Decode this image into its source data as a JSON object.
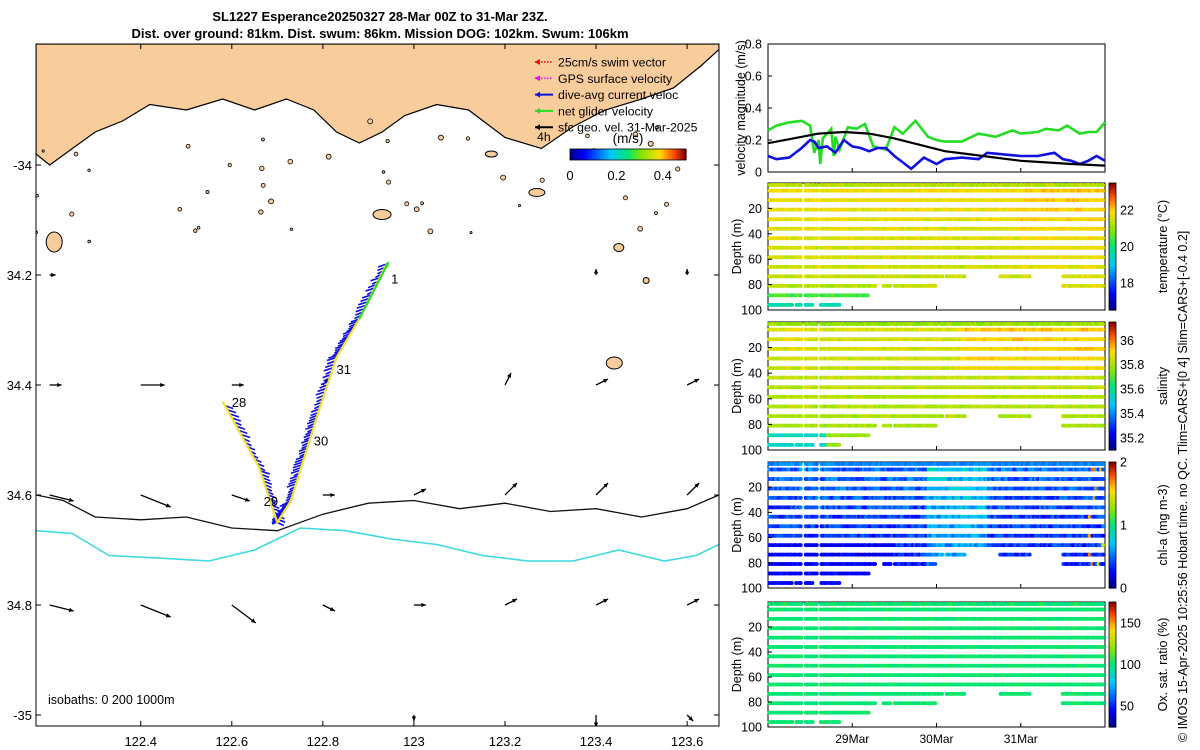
{
  "title": {
    "line1": "SL1227 Esperance20250327 28-Mar 00Z to 31-Mar 23Z.",
    "line2": "Dist. over ground: 81km. Dist. swum: 86km. Mission DOG: 102km. Swum: 106km"
  },
  "side_note": "© IMOS 15-Apr-2025 10:25:56 Hobart time. no QC. Tlim=CARS+[0 4] Slim=CARS+[-0.4 0.2]",
  "colors": {
    "land": "#f9cc9c",
    "isobath_200": "#111111",
    "isobath_1000": "#3ed8e0",
    "track": "#f0e030",
    "current": "#1010e0",
    "net": "#22dd22",
    "geo": "#000000"
  },
  "chart_data": [
    {
      "type": "map",
      "xlim": [
        122.17,
        123.67
      ],
      "ylim": [
        -35.02,
        -33.78
      ],
      "xticks": [
        122.4,
        122.6,
        122.8,
        123,
        123.2,
        123.4,
        123.6
      ],
      "xtick_labels": [
        "122.4",
        "122.6",
        "122.8",
        "123",
        "123.2",
        "123.4",
        "123.6"
      ],
      "yticks": [
        -34,
        -34.2,
        -34.4,
        -34.6,
        -34.8,
        -35
      ],
      "ytick_labels": [
        "-34",
        "34.2",
        "34.4",
        "34.6",
        "34.8",
        "-35"
      ],
      "legend": [
        {
          "label": "25cm/s swim vector",
          "color": "#ff0000",
          "style": "dotted"
        },
        {
          "label": "GPS surface velocity",
          "color": "#ff00ff",
          "style": "dotted"
        },
        {
          "label": "dive-avg current veloc",
          "color": "#1010e0",
          "style": "solid"
        },
        {
          "label": "net glider velocity",
          "color": "#22dd22",
          "style": "solid"
        },
        {
          "label": "sfc geo. vel. 31-Mar-2025",
          "color": "#000000",
          "style": "solid"
        }
      ],
      "legend_note": "4h",
      "colorbar": {
        "label": "(m/s)",
        "ticks": [
          "0",
          "0.2",
          "0.4"
        ],
        "range": [
          0,
          0.5
        ]
      },
      "isobath_caption": "isobaths: 0   200  1000m",
      "track": [
        [
          122.94,
          -34.18
        ],
        [
          122.88,
          -34.28
        ],
        [
          122.83,
          -34.35
        ],
        [
          122.79,
          -34.45
        ],
        [
          122.76,
          -34.53
        ],
        [
          122.73,
          -34.61
        ],
        [
          122.7,
          -34.65
        ],
        [
          122.66,
          -34.55
        ],
        [
          122.58,
          -34.43
        ]
      ],
      "day_labels": [
        {
          "text": "1",
          "lon": 122.95,
          "lat": -34.215
        },
        {
          "text": "31",
          "lon": 122.83,
          "lat": -34.38
        },
        {
          "text": "30",
          "lon": 122.78,
          "lat": -34.51
        },
        {
          "text": "29",
          "lon": 122.67,
          "lat": -34.62
        },
        {
          "text": "28",
          "lon": 122.6,
          "lat": -34.44
        }
      ],
      "isobath_200": [
        [
          122.17,
          -34.6
        ],
        [
          122.23,
          -34.61
        ],
        [
          122.3,
          -34.64
        ],
        [
          122.4,
          -34.645
        ],
        [
          122.5,
          -34.64
        ],
        [
          122.6,
          -34.66
        ],
        [
          122.7,
          -34.665
        ],
        [
          122.8,
          -34.635
        ],
        [
          122.9,
          -34.615
        ],
        [
          123,
          -34.61
        ],
        [
          123.1,
          -34.625
        ],
        [
          123.2,
          -34.615
        ],
        [
          123.3,
          -34.63
        ],
        [
          123.4,
          -34.625
        ],
        [
          123.5,
          -34.64
        ],
        [
          123.6,
          -34.625
        ],
        [
          123.67,
          -34.6
        ]
      ],
      "isobath_1000": [
        [
          122.17,
          -34.665
        ],
        [
          122.25,
          -34.67
        ],
        [
          122.33,
          -34.71
        ],
        [
          122.45,
          -34.715
        ],
        [
          122.55,
          -34.72
        ],
        [
          122.65,
          -34.7
        ],
        [
          122.75,
          -34.66
        ],
        [
          122.85,
          -34.665
        ],
        [
          122.95,
          -34.68
        ],
        [
          123.05,
          -34.69
        ],
        [
          123.15,
          -34.71
        ],
        [
          123.25,
          -34.72
        ],
        [
          123.35,
          -34.72
        ],
        [
          123.45,
          -34.7
        ],
        [
          123.55,
          -34.72
        ],
        [
          123.62,
          -34.71
        ],
        [
          123.67,
          -34.69
        ]
      ],
      "coast": [
        [
          122.17,
          -33.78
        ],
        [
          122.17,
          -33.98
        ],
        [
          122.2,
          -34.0
        ],
        [
          122.25,
          -33.97
        ],
        [
          122.3,
          -33.94
        ],
        [
          122.36,
          -33.92
        ],
        [
          122.42,
          -33.89
        ],
        [
          122.5,
          -33.9
        ],
        [
          122.58,
          -33.88
        ],
        [
          122.65,
          -33.9
        ],
        [
          122.72,
          -33.88
        ],
        [
          122.78,
          -33.9
        ],
        [
          122.83,
          -33.94
        ],
        [
          122.88,
          -33.96
        ],
        [
          122.93,
          -33.94
        ],
        [
          122.98,
          -33.91
        ],
        [
          123.05,
          -33.89
        ],
        [
          123.12,
          -33.9
        ],
        [
          123.2,
          -33.95
        ],
        [
          123.28,
          -33.97
        ],
        [
          123.35,
          -33.93
        ],
        [
          123.42,
          -33.9
        ],
        [
          123.5,
          -33.88
        ],
        [
          123.57,
          -33.86
        ],
        [
          123.63,
          -33.82
        ],
        [
          123.67,
          -33.79
        ],
        [
          123.67,
          -33.78
        ]
      ],
      "geo_vectors": [
        {
          "lon": 122.2,
          "lat": -34.6,
          "u": 0.04,
          "v": -0.01
        },
        {
          "lon": 122.4,
          "lat": -34.6,
          "u": 0.05,
          "v": -0.02
        },
        {
          "lon": 122.6,
          "lat": -34.6,
          "u": 0.03,
          "v": -0.01
        },
        {
          "lon": 122.8,
          "lat": -34.6,
          "u": 0.02,
          "v": 0.0
        },
        {
          "lon": 123.0,
          "lat": -34.6,
          "u": 0.02,
          "v": 0.01
        },
        {
          "lon": 123.2,
          "lat": -34.6,
          "u": 0.02,
          "v": 0.02
        },
        {
          "lon": 123.4,
          "lat": -34.6,
          "u": 0.02,
          "v": 0.02
        },
        {
          "lon": 123.6,
          "lat": -34.6,
          "u": 0.02,
          "v": 0.02
        },
        {
          "lon": 122.2,
          "lat": -34.8,
          "u": 0.04,
          "v": -0.01
        },
        {
          "lon": 122.4,
          "lat": -34.8,
          "u": 0.05,
          "v": -0.02
        },
        {
          "lon": 122.6,
          "lat": -34.8,
          "u": 0.04,
          "v": -0.03
        },
        {
          "lon": 122.8,
          "lat": -34.8,
          "u": 0.02,
          "v": -0.01
        },
        {
          "lon": 123.0,
          "lat": -34.8,
          "u": 0.02,
          "v": 0.0
        },
        {
          "lon": 123.2,
          "lat": -34.8,
          "u": 0.02,
          "v": 0.01
        },
        {
          "lon": 123.4,
          "lat": -34.8,
          "u": 0.02,
          "v": 0.01
        },
        {
          "lon": 123.6,
          "lat": -34.8,
          "u": 0.02,
          "v": 0.01
        },
        {
          "lon": 122.2,
          "lat": -34.4,
          "u": 0.02,
          "v": 0.0
        },
        {
          "lon": 122.4,
          "lat": -34.4,
          "u": 0.04,
          "v": 0.0
        },
        {
          "lon": 122.6,
          "lat": -34.4,
          "u": 0.02,
          "v": 0.0
        },
        {
          "lon": 122.8,
          "lat": -34.4,
          "u": 0.01,
          "v": 0.01
        },
        {
          "lon": 123.2,
          "lat": -34.4,
          "u": 0.01,
          "v": 0.02
        },
        {
          "lon": 123.4,
          "lat": -34.4,
          "u": 0.02,
          "v": 0.01
        },
        {
          "lon": 123.6,
          "lat": -34.4,
          "u": 0.02,
          "v": 0.01
        },
        {
          "lon": 122.2,
          "lat": -34.2,
          "u": 0.01,
          "v": 0.0
        },
        {
          "lon": 123.4,
          "lat": -34.2,
          "u": 0.0,
          "v": 0.01
        },
        {
          "lon": 123.6,
          "lat": -34.2,
          "u": 0.0,
          "v": 0.01
        },
        {
          "lon": 123.0,
          "lat": -35.0,
          "u": 0.0,
          "v": -0.01
        },
        {
          "lon": 123.4,
          "lat": -35.0,
          "u": 0.0,
          "v": -0.02
        },
        {
          "lon": 123.6,
          "lat": -35.0,
          "u": 0.01,
          "v": -0.01
        }
      ]
    },
    {
      "type": "line",
      "ylabel": "velocity magnitude (m/s)",
      "ylim": [
        0,
        0.8
      ],
      "yticks": [
        "0",
        "0.2",
        "0.4",
        "0.6",
        "0.8"
      ],
      "xlim": [
        28.0,
        32.0
      ],
      "series": [
        {
          "name": "net glider velocity",
          "color": "#22dd22",
          "x": [
            28.0,
            28.1,
            28.25,
            28.4,
            28.5,
            28.55,
            28.6,
            28.62,
            28.65,
            28.75,
            28.78,
            28.8,
            28.85,
            28.95,
            29.05,
            29.15,
            29.25,
            29.4,
            29.5,
            29.6,
            29.75,
            29.9,
            30.0,
            30.1,
            30.3,
            30.5,
            30.7,
            30.9,
            31.0,
            31.2,
            31.3,
            31.45,
            31.55,
            31.7,
            31.8,
            31.9,
            32.0
          ],
          "y": [
            0.26,
            0.29,
            0.31,
            0.32,
            0.29,
            0.12,
            0.2,
            0.05,
            0.21,
            0.27,
            0.1,
            0.22,
            0.14,
            0.28,
            0.27,
            0.3,
            0.16,
            0.14,
            0.28,
            0.24,
            0.32,
            0.22,
            0.2,
            0.19,
            0.19,
            0.24,
            0.22,
            0.26,
            0.24,
            0.25,
            0.27,
            0.26,
            0.29,
            0.24,
            0.25,
            0.25,
            0.31
          ]
        },
        {
          "name": "dive-avg current",
          "color": "#1010e0",
          "x": [
            28.0,
            28.1,
            28.25,
            28.4,
            28.5,
            28.55,
            28.6,
            28.7,
            28.8,
            28.9,
            29.0,
            29.1,
            29.2,
            29.3,
            29.4,
            29.5,
            29.6,
            29.7,
            29.85,
            30.0,
            30.1,
            30.3,
            30.5,
            30.6,
            30.8,
            31.0,
            31.2,
            31.4,
            31.5,
            31.6,
            31.7,
            31.8,
            31.9,
            32.0
          ],
          "y": [
            0.1,
            0.08,
            0.09,
            0.15,
            0.2,
            0.19,
            0.15,
            0.16,
            0.12,
            0.2,
            0.16,
            0.15,
            0.13,
            0.15,
            0.15,
            0.1,
            0.06,
            0.02,
            0.09,
            0.05,
            0.08,
            0.09,
            0.08,
            0.12,
            0.11,
            0.1,
            0.1,
            0.12,
            0.08,
            0.07,
            0.05,
            0.07,
            0.1,
            0.07
          ]
        },
        {
          "name": "sfc geo. vel.",
          "color": "#000000",
          "x": [
            28.0,
            28.3,
            28.6,
            28.9,
            29.2,
            29.5,
            29.8,
            30.1,
            30.4,
            30.7,
            31.0,
            31.3,
            31.6,
            32.0
          ],
          "y": [
            0.18,
            0.21,
            0.24,
            0.25,
            0.24,
            0.21,
            0.17,
            0.13,
            0.11,
            0.09,
            0.07,
            0.06,
            0.05,
            0.04
          ]
        }
      ]
    },
    {
      "type": "heatmap",
      "ylabel": "Depth (m)",
      "yticks": [
        "20",
        "40",
        "60",
        "80",
        "100"
      ],
      "ylim": [
        0,
        100
      ],
      "variable": "temperature",
      "cbar_label": "temperature (°C)",
      "cbar_ticks": [
        "18",
        "20",
        "22"
      ],
      "cbar_range": [
        16.5,
        23.5
      ],
      "typical": 21.3,
      "deep_value": 18.8
    },
    {
      "type": "heatmap",
      "ylabel": "Depth (m)",
      "yticks": [
        "20",
        "40",
        "60",
        "80",
        "100"
      ],
      "ylim": [
        0,
        100
      ],
      "variable": "salinity",
      "cbar_label": "salinity",
      "cbar_ticks": [
        "35.2",
        "35.4",
        "35.6",
        "35.8",
        "36"
      ],
      "cbar_range": [
        35.1,
        36.15
      ],
      "typical": 35.78,
      "deep_value": 35.68
    },
    {
      "type": "heatmap",
      "ylabel": "Depth (m)",
      "yticks": [
        "20",
        "40",
        "60",
        "80",
        "100"
      ],
      "ylim": [
        0,
        100
      ],
      "variable": "chl-a",
      "cbar_label": "chl-a (mg m-3)",
      "cbar_ticks": [
        "0",
        "1",
        "2"
      ],
      "cbar_range": [
        0,
        2
      ],
      "typical": 0.55,
      "deep_value": 0.15
    },
    {
      "type": "heatmap",
      "ylabel": "Depth (m)",
      "yticks": [
        "20",
        "40",
        "60",
        "80",
        "100"
      ],
      "ylim": [
        0,
        100
      ],
      "variable": "oxygen saturation",
      "cbar_label": "Ox. sat. ratio (%)",
      "cbar_ticks": [
        "50",
        "100",
        "150"
      ],
      "cbar_range": [
        25,
        175
      ],
      "typical": 101,
      "deep_value": 100,
      "xticks": [
        29,
        30,
        31
      ],
      "xtick_labels": [
        "29Mar",
        "30Mar",
        "31Mar"
      ],
      "xlim": [
        28.0,
        32.0
      ]
    }
  ]
}
